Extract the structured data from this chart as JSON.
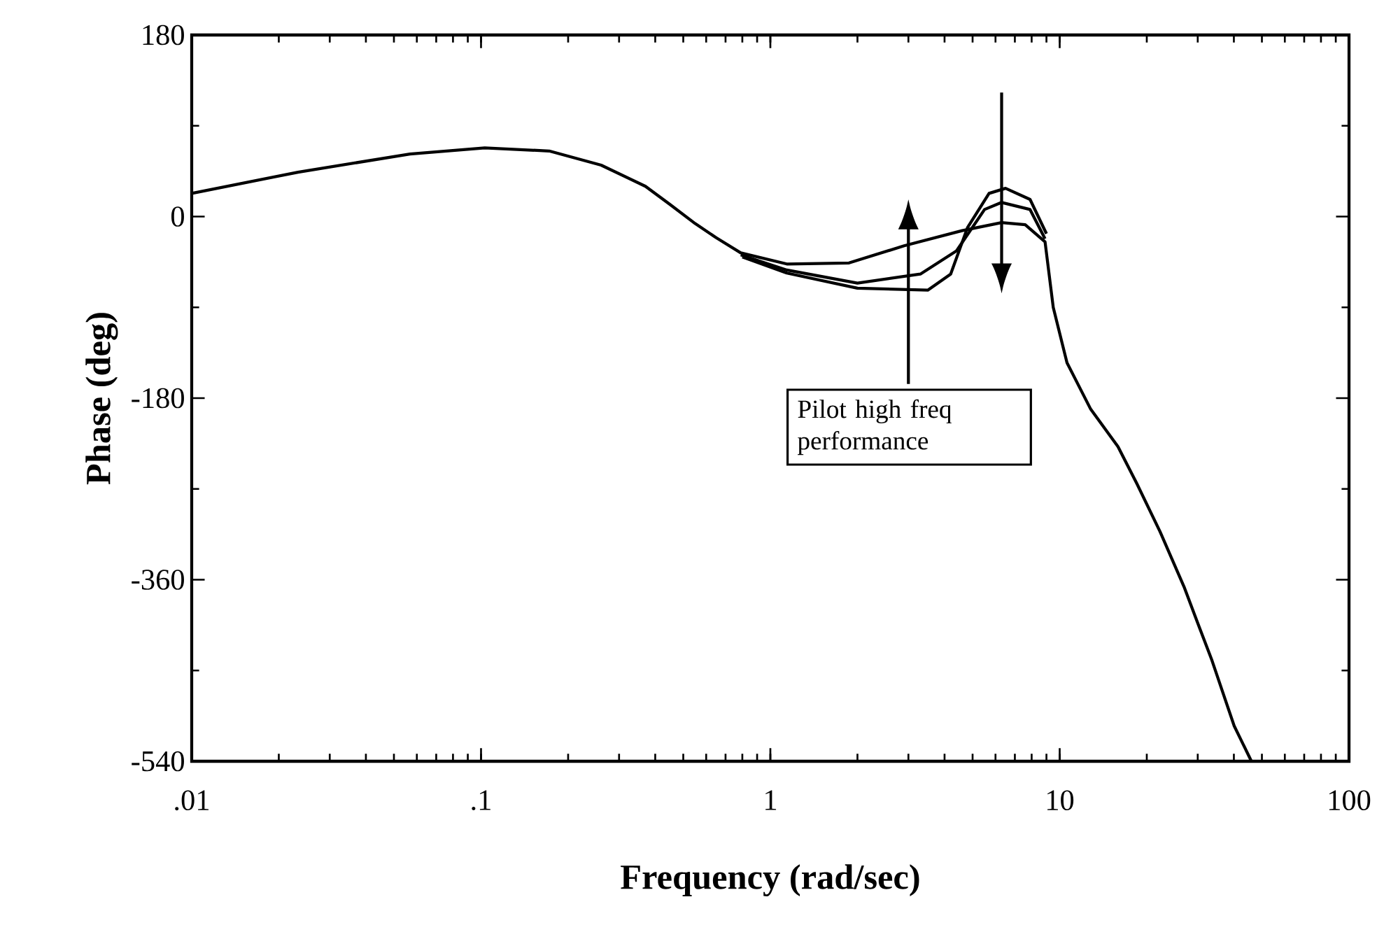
{
  "chart_data": {
    "type": "line",
    "xlabel": "Frequency  (rad/sec)",
    "ylabel": "Phase  (deg)",
    "log": "x",
    "xlim": [
      0.01,
      100
    ],
    "ylim": [
      -540,
      180
    ],
    "xticks": [
      {
        "value": 0.01,
        "label": ".01"
      },
      {
        "value": 0.1,
        "label": ".1"
      },
      1,
      10,
      100
    ],
    "yticks": [
      -540,
      -360,
      -180,
      0,
      180
    ],
    "annotations": [
      "Pilot high freq performance"
    ],
    "series": [
      {
        "color": "#000000",
        "x": [
          0.01,
          0.0233,
          0.0568,
          0.103,
          0.172,
          0.26,
          0.37,
          0.45,
          0.55,
          0.65,
          0.79,
          1.14,
          1.87,
          2.9,
          4.6,
          6.3,
          7.6,
          8.9,
          9.5,
          10.6,
          12.8,
          15.9,
          18.5,
          22.2,
          26.9,
          30,
          33.6,
          40.1,
          46
        ],
        "values": [
          23,
          44,
          62,
          68,
          65,
          51,
          30,
          12,
          -7,
          -21,
          -36,
          -47,
          -46,
          -29,
          -14,
          -6,
          -8,
          -25,
          -90,
          -145,
          -191,
          -228,
          -265,
          -312,
          -367,
          -403,
          -440,
          -505,
          -540
        ]
      },
      {
        "color": "#000000",
        "x": [
          0.79,
          1.14,
          2.0,
          3.3,
          4.4,
          5.5,
          6.3,
          7.9,
          8.9
        ],
        "values": [
          -38,
          -53,
          -66,
          -57,
          -34,
          7,
          14,
          7,
          -22
        ]
      },
      {
        "color": "#000000",
        "x": [
          0.8,
          1.14,
          2.0,
          3.5,
          4.2,
          4.8,
          5.7,
          6.5,
          7.9,
          9.0
        ],
        "values": [
          -40,
          -56,
          -71,
          -73,
          -57,
          -11,
          23,
          28,
          17,
          -17
        ]
      }
    ]
  }
}
